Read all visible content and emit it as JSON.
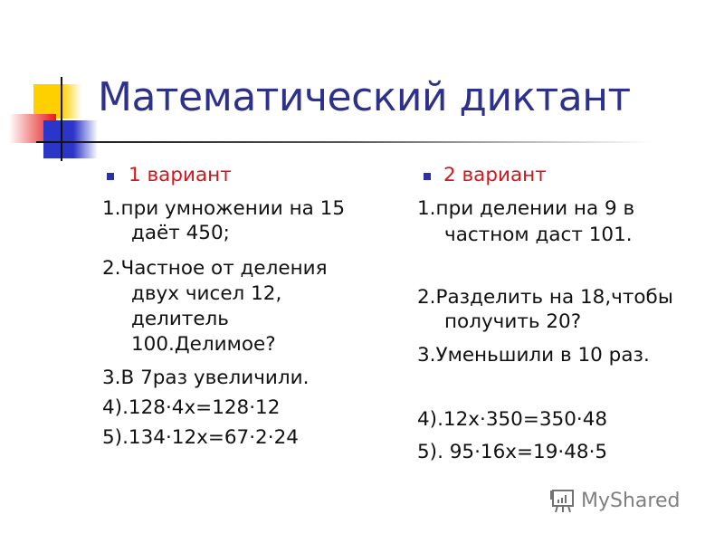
{
  "title": "Математический диктант",
  "colors": {
    "title": "#2e318c",
    "heading": "#d4161c",
    "bullet": "#2b2fa8"
  },
  "left": {
    "heading": "1 вариант",
    "lines": [
      "1.при умножении на 15",
      "даёт 450;",
      "2.Частное от деления",
      "двух чисел 12,",
      "делитель",
      "100.Делимое?",
      "3.В 7раз увеличили.",
      "4).128·4х=128·12",
      "5).134·12х=67·2·24"
    ]
  },
  "right": {
    "heading": "2 вариант",
    "lines": [
      "1.при делении на 9 в",
      "частном даст 101.",
      "2.Разделить на 18,чтобы",
      "получить 20?",
      "3.Уменьшили в 10 раз.",
      "4).12х·350=350·48",
      "5). 95·16х=19·48·5"
    ]
  },
  "watermark": {
    "text": "MyShared",
    "icon": "presentation-board-icon"
  }
}
